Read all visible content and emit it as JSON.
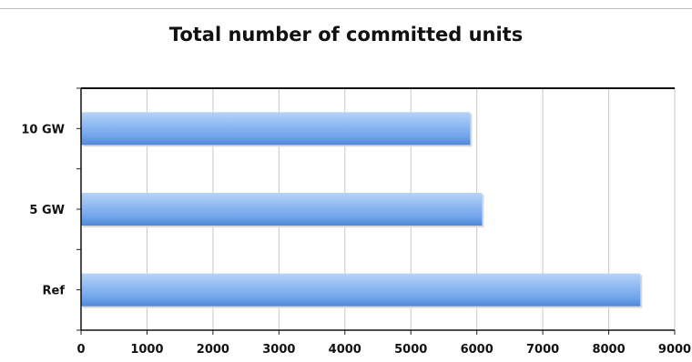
{
  "chart_data": {
    "type": "bar",
    "orientation": "horizontal",
    "title": "Total number of committed units",
    "xlabel": "",
    "ylabel": "",
    "categories": [
      "10 GW",
      "5 GW",
      "Ref"
    ],
    "values": [
      5900,
      6080,
      8480
    ],
    "xlim": [
      0,
      9000
    ],
    "xticks": [
      "0",
      "1000",
      "2000",
      "3000",
      "4000",
      "5000",
      "6000",
      "7000",
      "8000",
      "9000"
    ],
    "grid": "vertical",
    "legend": "none",
    "bar_color": "#6fa3ea"
  }
}
